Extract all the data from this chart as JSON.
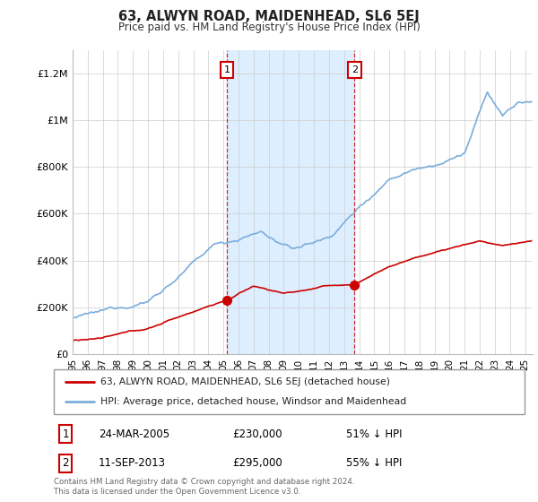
{
  "title": "63, ALWYN ROAD, MAIDENHEAD, SL6 5EJ",
  "subtitle": "Price paid vs. HM Land Registry's House Price Index (HPI)",
  "footer": "Contains HM Land Registry data © Crown copyright and database right 2024.\nThis data is licensed under the Open Government Licence v3.0.",
  "legend_line1": "63, ALWYN ROAD, MAIDENHEAD, SL6 5EJ (detached house)",
  "legend_line2": "HPI: Average price, detached house, Windsor and Maidenhead",
  "annotation1_date": "24-MAR-2005",
  "annotation1_price": "£230,000",
  "annotation1_hpi": "51% ↓ HPI",
  "annotation1_year": 2005.22,
  "annotation1_value": 230000,
  "annotation2_date": "11-SEP-2013",
  "annotation2_price": "£295,000",
  "annotation2_hpi": "55% ↓ HPI",
  "annotation2_year": 2013.69,
  "annotation2_value": 295000,
  "hpi_color": "#7aaddb",
  "price_color": "#cc0000",
  "shaded_region_color": "#ddeeff",
  "ylim": [
    0,
    1300000
  ],
  "yticks": [
    0,
    200000,
    400000,
    600000,
    800000,
    1000000,
    1200000
  ],
  "ytick_labels": [
    "£0",
    "£200K",
    "£400K",
    "£600K",
    "£800K",
    "£1M",
    "£1.2M"
  ],
  "year_start": 1995,
  "year_end": 2025.5
}
